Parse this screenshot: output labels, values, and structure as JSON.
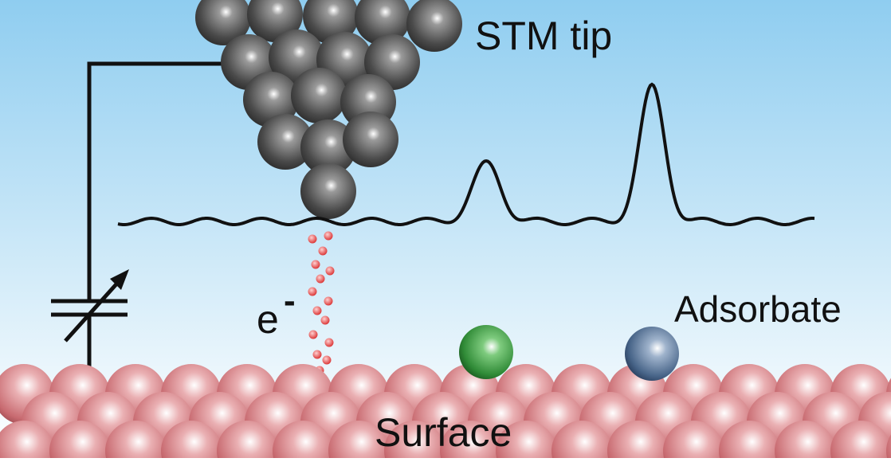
{
  "labels": {
    "tip": "STM tip",
    "electron": "e",
    "electron_charge": "-",
    "adsorbate": "Adsorbate",
    "surface": "Surface"
  }
}
